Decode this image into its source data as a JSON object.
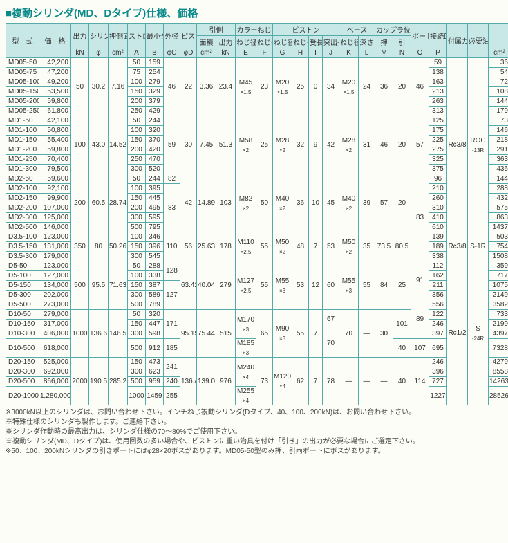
{
  "title": "■複動シリンダ(MD、Dタイプ)仕様、価格",
  "headers": {
    "row1": [
      "型　式",
      "価　格",
      "出力",
      "シリンダ内径",
      "押側面積",
      "ストローク",
      "最小全長",
      "外径",
      "ピストン径",
      "引側",
      "カラーねじ",
      "ピストン",
      "ベース",
      "カップラ位置",
      "ポート間距離",
      "接続口径",
      "付属カップラ",
      "必要油量"
    ],
    "row1_sub_pull": [
      "面積",
      "出力"
    ],
    "row1_sub_collar": [
      "ねじ径",
      "ねじ長"
    ],
    "row1_sub_piston": [
      "ねじ径",
      "ねじ長",
      "受長",
      "突出長"
    ],
    "row1_sub_base": [
      "ねじ径",
      "深さ"
    ],
    "row1_sub_coupler": [
      "押",
      "引"
    ],
    "row2": [
      "kN",
      "φ",
      "cm²",
      "A",
      "B",
      "φC",
      "φD",
      "cm²",
      "kN",
      "E",
      "F",
      "G",
      "H",
      "I",
      "J",
      "K",
      "L",
      "M",
      "N",
      "O",
      "P",
      "cm²"
    ]
  },
  "rows": [
    [
      "MD05-50",
      "42,200",
      "50",
      "30.2",
      "7.16",
      "50",
      "159",
      "46",
      "22",
      "3.36",
      "23.4",
      "M45\n×1.5",
      "23",
      "M20\n×1.5",
      "25",
      "0",
      "34",
      "M20\n×1.5",
      "24",
      "36",
      "20",
      "46",
      "59",
      "Rc3/8",
      "ROC\n-13R",
      "36"
    ],
    [
      "MD05-75",
      "47,200",
      "",
      "",
      "",
      "75",
      "254",
      "",
      "",
      "",
      "",
      "",
      "",
      "",
      "",
      "",
      "",
      "",
      "",
      "",
      "",
      "",
      "138",
      "",
      "",
      "54"
    ],
    [
      "MD05-100",
      "49,200",
      "",
      "",
      "",
      "100",
      "279",
      "",
      "",
      "",
      "",
      "",
      "",
      "",
      "",
      "",
      "",
      "",
      "",
      "",
      "",
      "",
      "163",
      "",
      "",
      "72"
    ],
    [
      "MD05-150",
      "53,500",
      "",
      "",
      "",
      "150",
      "329",
      "",
      "",
      "",
      "",
      "",
      "",
      "",
      "",
      "",
      "",
      "",
      "",
      "",
      "",
      "",
      "213",
      "",
      "",
      "108"
    ],
    [
      "MD05-200",
      "59,800",
      "",
      "",
      "",
      "200",
      "379",
      "",
      "",
      "",
      "",
      "",
      "",
      "",
      "",
      "",
      "",
      "",
      "",
      "",
      "",
      "",
      "263",
      "",
      "",
      "144"
    ],
    [
      "MD05-250",
      "61,800",
      "",
      "",
      "",
      "250",
      "429",
      "",
      "",
      "",
      "",
      "",
      "",
      "",
      "",
      "",
      "",
      "",
      "",
      "",
      "",
      "",
      "313",
      "",
      "",
      "179"
    ],
    [
      "MD1-50",
      "42,100",
      "100",
      "43.0",
      "14.52",
      "50",
      "244",
      "59",
      "30",
      "7.45",
      "51.3",
      "M58\n×2",
      "25",
      "M28\n×2",
      "32",
      "9",
      "42",
      "M28\n×2",
      "31",
      "46",
      "20",
      "57",
      "125",
      "",
      "",
      "73"
    ],
    [
      "MD1-100",
      "50,800",
      "",
      "",
      "",
      "100",
      "320",
      "",
      "",
      "",
      "",
      "",
      "",
      "",
      "",
      "",
      "",
      "",
      "",
      "",
      "",
      "",
      "175",
      "",
      "",
      "146"
    ],
    [
      "MD1-150",
      "55,400",
      "",
      "",
      "",
      "150",
      "370",
      "",
      "",
      "",
      "",
      "",
      "",
      "",
      "",
      "",
      "",
      "",
      "",
      "",
      "",
      "",
      "225",
      "",
      "",
      "218"
    ],
    [
      "MD1-200",
      "59,800",
      "",
      "",
      "",
      "200",
      "420",
      "",
      "",
      "",
      "",
      "",
      "",
      "",
      "",
      "",
      "",
      "",
      "",
      "",
      "",
      "",
      "275",
      "",
      "",
      "291"
    ],
    [
      "MD1-250",
      "70,400",
      "",
      "",
      "",
      "250",
      "470",
      "",
      "",
      "",
      "",
      "",
      "",
      "",
      "",
      "",
      "",
      "",
      "",
      "",
      "",
      "",
      "325",
      "",
      "",
      "363"
    ],
    [
      "MD1-300",
      "79,500",
      "",
      "",
      "",
      "300",
      "520",
      "",
      "",
      "",
      "",
      "",
      "",
      "",
      "",
      "",
      "",
      "",
      "",
      "",
      "",
      "",
      "375",
      "",
      "",
      "436"
    ],
    [
      "MD2-50",
      "59,600",
      "200",
      "60.5",
      "28.74",
      "50",
      "244",
      "82",
      "42",
      "14.89",
      "103",
      "M82\n×2",
      "50",
      "M40\n×2",
      "36",
      "10",
      "45",
      "M40\n×2",
      "39",
      "57",
      "20",
      "83",
      "96",
      "",
      "",
      "144"
    ],
    [
      "MD2-100",
      "92,100",
      "",
      "",
      "",
      "100",
      "395",
      "83",
      "",
      "",
      "",
      "",
      "",
      "",
      "",
      "",
      "",
      "",
      "",
      "",
      "",
      "",
      "210",
      "",
      "",
      "288"
    ],
    [
      "MD2-150",
      "99,900",
      "",
      "",
      "",
      "150",
      "445",
      "",
      "",
      "",
      "",
      "",
      "",
      "",
      "",
      "",
      "",
      "",
      "",
      "",
      "",
      "",
      "260",
      "",
      "",
      "432"
    ],
    [
      "MD2-200",
      "107,000",
      "",
      "",
      "",
      "200",
      "495",
      "",
      "",
      "",
      "",
      "",
      "",
      "",
      "",
      "",
      "",
      "",
      "",
      "",
      "",
      "",
      "310",
      "",
      "",
      "575"
    ],
    [
      "MD2-300",
      "125,000",
      "",
      "",
      "",
      "300",
      "595",
      "",
      "",
      "",
      "",
      "",
      "",
      "",
      "",
      "",
      "",
      "",
      "",
      "",
      "",
      "",
      "410",
      "",
      "",
      "863"
    ],
    [
      "MD2-500",
      "146,000",
      "",
      "",
      "",
      "500",
      "795",
      "",
      "",
      "",
      "",
      "",
      "",
      "",
      "",
      "",
      "",
      "",
      "",
      "",
      "",
      "",
      "610",
      "",
      "",
      "1437"
    ],
    [
      "D3.5-100",
      "123,000",
      "350",
      "80",
      "50.26",
      "100",
      "346",
      "110",
      "56",
      "25.63",
      "178",
      "M110\n×2.5",
      "55",
      "M50\n×2",
      "48",
      "7",
      "53",
      "M50\n×2",
      "35",
      "73.5",
      "80.5",
      "",
      "139",
      "Rc3/8",
      "S-1R",
      "503"
    ],
    [
      "D3.5-150",
      "131,000",
      "",
      "",
      "",
      "150",
      "396",
      "",
      "",
      "",
      "",
      "",
      "",
      "",
      "",
      "",
      "",
      "",
      "",
      "",
      "",
      "",
      "189",
      "",
      "",
      "754"
    ],
    [
      "D3.5-300",
      "179,000",
      "",
      "",
      "",
      "300",
      "545",
      "",
      "",
      "",
      "",
      "",
      "",
      "",
      "",
      "",
      "",
      "",
      "",
      "",
      "",
      "",
      "338",
      "",
      "",
      "1508"
    ],
    [
      "D5-50",
      "123,000",
      "500",
      "95.5",
      "71.63",
      "50",
      "288",
      "128",
      "63.42",
      "40.04",
      "279",
      "M127\n×2.5",
      "55",
      "M55\n×3",
      "53",
      "12",
      "60",
      "M55\n×3",
      "55",
      "84",
      "25",
      "91",
      "112",
      "Rc1/2",
      "S\n-24R",
      "359"
    ],
    [
      "D5-100",
      "127,000",
      "",
      "",
      "",
      "100",
      "338",
      "",
      "",
      "",
      "",
      "",
      "",
      "",
      "",
      "",
      "",
      "",
      "",
      "",
      "",
      "",
      "162",
      "",
      "",
      "717"
    ],
    [
      "D5-150",
      "134,000",
      "",
      "",
      "",
      "150",
      "387",
      "127",
      "",
      "",
      "",
      "",
      "",
      "",
      "",
      "",
      "",
      "",
      "",
      "",
      "",
      "",
      "211",
      "",
      "",
      "1075"
    ],
    [
      "D5-300",
      "202,000",
      "",
      "",
      "",
      "300",
      "589",
      "",
      "",
      "",
      "",
      "",
      "",
      "",
      "",
      "",
      "",
      "",
      "",
      "",
      "",
      "",
      "356",
      "",
      "",
      "2149"
    ],
    [
      "D5-500",
      "273,000",
      "",
      "",
      "",
      "500",
      "789",
      "",
      "",
      "",
      "",
      "",
      "",
      "",
      "",
      "",
      "",
      "",
      "",
      "",
      "",
      "89",
      "556",
      "",
      "",
      "3582"
    ],
    [
      "D10-50",
      "279,000",
      "1000",
      "136.6",
      "146.5",
      "50",
      "320",
      "171",
      "95.15",
      "75.44",
      "515",
      "M170\n×3",
      "65",
      "M90\n×3",
      "55",
      "7",
      "67",
      "70",
      "―",
      "30",
      "101",
      "",
      "122",
      "",
      "",
      "733"
    ],
    [
      "D10-150",
      "317,000",
      "",
      "",
      "",
      "150",
      "447",
      "",
      "",
      "",
      "",
      "",
      "",
      "",
      "",
      "",
      "",
      "",
      "",
      "",
      "",
      "",
      "246",
      "",
      "",
      "2199"
    ],
    [
      "D10-300",
      "406,000",
      "",
      "",
      "",
      "300",
      "598",
      "",
      "",
      "",
      "",
      "",
      "",
      "",
      "",
      "",
      "70",
      "",
      "",
      "",
      "",
      "",
      "397",
      "",
      "",
      "4397"
    ],
    [
      "D10-500",
      "618,000",
      "",
      "",
      "",
      "500",
      "912",
      "185",
      "",
      "",
      "",
      "M185\n×3",
      "",
      "",
      "",
      "",
      "",
      "",
      "",
      "",
      "40",
      "107",
      "695",
      "",
      "",
      "7328"
    ],
    [
      "D20-150",
      "525,000",
      "2000",
      "190.5",
      "285.2",
      "150",
      "473",
      "241",
      "136.4",
      "139.0",
      "976",
      "M240\n×4",
      "73",
      "M120\n×4",
      "62",
      "7",
      "78",
      "―",
      "―",
      "―",
      "40",
      "114",
      "246",
      "",
      "",
      "4279"
    ],
    [
      "D20-300",
      "692,000",
      "",
      "",
      "",
      "300",
      "623",
      "",
      "",
      "",
      "",
      "",
      "",
      "",
      "",
      "",
      "",
      "",
      "",
      "",
      "",
      "",
      "396",
      "",
      "",
      "8558"
    ],
    [
      "D20-500",
      "866,000",
      "",
      "",
      "",
      "500",
      "959",
      "240",
      "",
      "",
      "",
      "",
      "",
      "",
      "",
      "",
      "",
      "",
      "",
      "",
      "",
      "",
      "727",
      "",
      "",
      "14263"
    ],
    [
      "D20-1000",
      "1,280,000",
      "",
      "",
      "",
      "1000",
      "1459",
      "255",
      "",
      "",
      "",
      "M255\n×4",
      "",
      "",
      "",
      "",
      "",
      "",
      "",
      "",
      "",
      "",
      "1227",
      "",
      "",
      "28526"
    ]
  ],
  "notes": [
    "※3000kN以上のシリンダは、お問い合わせ下さい。インチねじ複動シリンダ(Dタイプ、40、100、200kN)は、お問い合わせ下さい。",
    "※特殊仕様のシリンダも製作します。ご連絡下さい。",
    "※シリンダ作動時の最高出力は、シリンダ仕様の70～80%でご使用下さい。",
    "※複動シリンダ(MD、Dタイプ)は、使用回数の多い場合や、ピストンに重い治具を付け「引き」の出力が必要な場合にご選定下さい。",
    "※50、100、200kNシリンダの引きポートにはφ28×20ボスがあります。MD05-50型のみ押、引両ポートにボスがあります。"
  ]
}
